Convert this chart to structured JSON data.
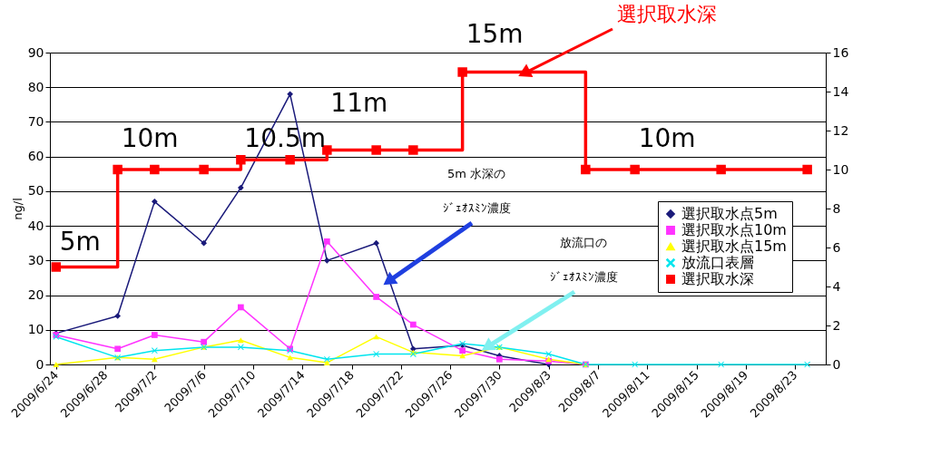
{
  "chart_data": {
    "type": "line",
    "ylabel": "ng/l",
    "x": [
      "2009-06-24",
      "2009-06-29",
      "2009-07-02",
      "2009-07-06",
      "2009-07-09",
      "2009-07-13",
      "2009-07-16",
      "2009-07-20",
      "2009-07-23",
      "2009-07-27",
      "2009-07-30",
      "2009-08-03",
      "2009-08-06",
      "2009-08-10",
      "2009-08-17",
      "2009-08-24"
    ],
    "series": [
      {
        "name": "選択取水点5m",
        "color": "#1a1a7a",
        "marker": "diamond",
        "values": [
          9,
          14,
          47,
          35,
          51,
          78,
          30,
          35,
          4.5,
          5.5,
          2.5,
          0,
          null,
          null,
          null,
          null
        ]
      },
      {
        "name": "選択取水点10m",
        "color": "#ff33ff",
        "marker": "square",
        "values": [
          8.5,
          4.5,
          8.5,
          6.5,
          16.5,
          4.5,
          35.5,
          19.5,
          11.5,
          4,
          1.5,
          1,
          0,
          null,
          null,
          null
        ]
      },
      {
        "name": "選択取水点15m",
        "color": "#ffff00",
        "marker": "triangle",
        "values": [
          0,
          2,
          1.5,
          5,
          7,
          2,
          0.5,
          8,
          3.5,
          2.5,
          5,
          1.5,
          0,
          null,
          null,
          null
        ]
      },
      {
        "name": "放流口表層",
        "color": "#00e5ee",
        "marker": "cross",
        "values": [
          8,
          2,
          4,
          5,
          5,
          4,
          1.5,
          3,
          3,
          6,
          5,
          3,
          0,
          0,
          0,
          0
        ]
      },
      {
        "name": "選択取水深",
        "color": "#ff0000",
        "type": "step",
        "axis": "y2",
        "marker": "square",
        "x": [
          "2009-06-24",
          "2009-06-29",
          "2009-07-02",
          "2009-07-06",
          "2009-07-09",
          "2009-07-13",
          "2009-07-16",
          "2009-07-20",
          "2009-07-23",
          "2009-07-27",
          "2009-08-06",
          "2009-08-10",
          "2009-08-17",
          "2009-08-24"
        ],
        "values": [
          5,
          10,
          10,
          10,
          10.5,
          10.5,
          11,
          11,
          11,
          15,
          10,
          10,
          10,
          10
        ],
        "value_labels": [
          "5m",
          "10m",
          null,
          null,
          "10.5m",
          null,
          "11m",
          null,
          null,
          "15m",
          null,
          "10m",
          null,
          null
        ]
      }
    ],
    "xlim": [
      "2009-06-23T12:00",
      "2009-08-25T12:00"
    ],
    "xticks": [
      {
        "value": "2009-06-24",
        "label": "2009/6/24"
      },
      {
        "value": "2009-06-28",
        "label": "2009/6/28"
      },
      {
        "value": "2009-07-02",
        "label": "2009/7/2"
      },
      {
        "value": "2009-07-06",
        "label": "2009/7/6"
      },
      {
        "value": "2009-07-10",
        "label": "2009/7/10"
      },
      {
        "value": "2009-07-14",
        "label": "2009/7/14"
      },
      {
        "value": "2009-07-18",
        "label": "2009/7/18"
      },
      {
        "value": "2009-07-22",
        "label": "2009/7/22"
      },
      {
        "value": "2009-07-26",
        "label": "2009/7/26"
      },
      {
        "value": "2009-07-30",
        "label": "2009/7/30"
      },
      {
        "value": "2009-08-03",
        "label": "2009/8/3"
      },
      {
        "value": "2009-08-07",
        "label": "2009/8/7"
      },
      {
        "value": "2009-08-11",
        "label": "2009/8/11"
      },
      {
        "value": "2009-08-15",
        "label": "2009/8/15"
      },
      {
        "value": "2009-08-19",
        "label": "2009/8/19"
      },
      {
        "value": "2009-08-23",
        "label": "2009/8/23"
      }
    ],
    "ylim": [
      0,
      90
    ],
    "yticks": [
      0,
      10,
      20,
      30,
      40,
      50,
      60,
      70,
      80,
      90
    ],
    "y2lim": [
      0,
      16
    ],
    "y2ticks": [
      0,
      2,
      4,
      6,
      8,
      10,
      12,
      14,
      16
    ],
    "grid": "y",
    "legend": "right",
    "annotations": [
      {
        "text": "選択取水深",
        "x": "2009-08-01",
        "y": 84
      },
      "5m 水深の",
      {
        "text": "ｼﾞｪｵｽﾐﾝ濃度",
        "x": "2009-07-21",
        "y": 24
      },
      "放流口の",
      {
        "text": "ｼﾞｪｵｽﾐﾝ濃度",
        "x": "2009-07-29",
        "y": 5
      }
    ]
  }
}
